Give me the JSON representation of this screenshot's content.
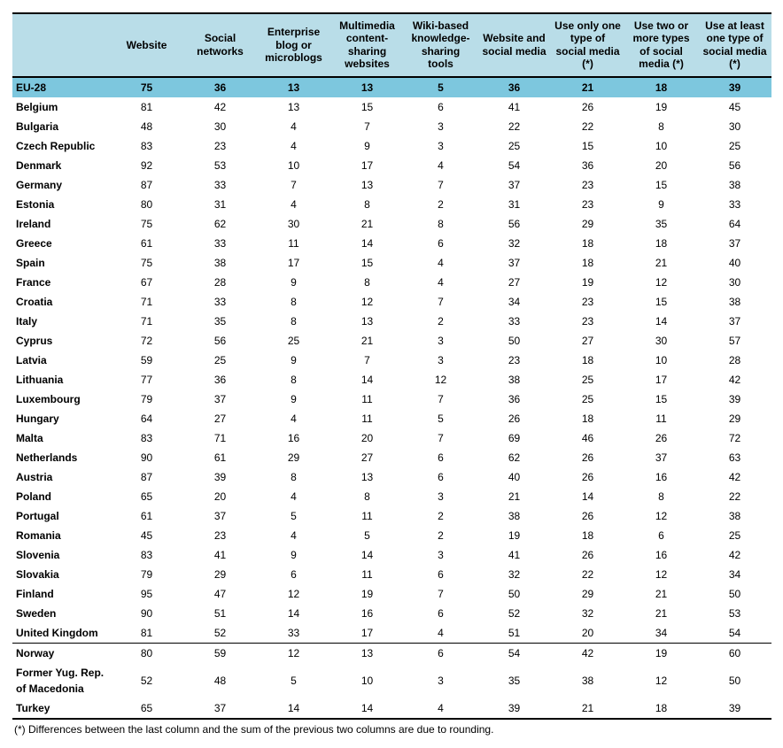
{
  "table": {
    "columns": [
      "",
      "Website",
      "Social networks",
      "Enterprise blog or microblogs",
      "Multimedia content-sharing websites",
      "Wiki-based knowledge-sharing tools",
      "Website and social media",
      "Use only one type of social media (*)",
      "Use two or more types of social media (*)",
      "Use at least one type of social media (*)"
    ],
    "rows": [
      {
        "label": "EU-28",
        "vals": [
          75,
          36,
          13,
          13,
          5,
          36,
          21,
          18,
          39
        ],
        "highlight": true
      },
      {
        "label": "Belgium",
        "vals": [
          81,
          42,
          13,
          15,
          6,
          41,
          26,
          19,
          45
        ]
      },
      {
        "label": "Bulgaria",
        "vals": [
          48,
          30,
          4,
          7,
          3,
          22,
          22,
          8,
          30
        ]
      },
      {
        "label": "Czech Republic",
        "vals": [
          83,
          23,
          4,
          9,
          3,
          25,
          15,
          10,
          25
        ]
      },
      {
        "label": "Denmark",
        "vals": [
          92,
          53,
          10,
          17,
          4,
          54,
          36,
          20,
          56
        ]
      },
      {
        "label": "Germany",
        "vals": [
          87,
          33,
          7,
          13,
          7,
          37,
          23,
          15,
          38
        ]
      },
      {
        "label": "Estonia",
        "vals": [
          80,
          31,
          4,
          8,
          2,
          31,
          23,
          9,
          33
        ]
      },
      {
        "label": "Ireland",
        "vals": [
          75,
          62,
          30,
          21,
          8,
          56,
          29,
          35,
          64
        ]
      },
      {
        "label": "Greece",
        "vals": [
          61,
          33,
          11,
          14,
          6,
          32,
          18,
          18,
          37
        ]
      },
      {
        "label": "Spain",
        "vals": [
          75,
          38,
          17,
          15,
          4,
          37,
          18,
          21,
          40
        ]
      },
      {
        "label": "France",
        "vals": [
          67,
          28,
          9,
          8,
          4,
          27,
          19,
          12,
          30
        ]
      },
      {
        "label": "Croatia",
        "vals": [
          71,
          33,
          8,
          12,
          7,
          34,
          23,
          15,
          38
        ]
      },
      {
        "label": "Italy",
        "vals": [
          71,
          35,
          8,
          13,
          2,
          33,
          23,
          14,
          37
        ]
      },
      {
        "label": "Cyprus",
        "vals": [
          72,
          56,
          25,
          21,
          3,
          50,
          27,
          30,
          57
        ]
      },
      {
        "label": "Latvia",
        "vals": [
          59,
          25,
          9,
          7,
          3,
          23,
          18,
          10,
          28
        ]
      },
      {
        "label": "Lithuania",
        "vals": [
          77,
          36,
          8,
          14,
          12,
          38,
          25,
          17,
          42
        ]
      },
      {
        "label": "Luxembourg",
        "vals": [
          79,
          37,
          9,
          11,
          7,
          36,
          25,
          15,
          39
        ]
      },
      {
        "label": "Hungary",
        "vals": [
          64,
          27,
          4,
          11,
          5,
          26,
          18,
          11,
          29
        ]
      },
      {
        "label": "Malta",
        "vals": [
          83,
          71,
          16,
          20,
          7,
          69,
          46,
          26,
          72
        ]
      },
      {
        "label": "Netherlands",
        "vals": [
          90,
          61,
          29,
          27,
          6,
          62,
          26,
          37,
          63
        ]
      },
      {
        "label": "Austria",
        "vals": [
          87,
          39,
          8,
          13,
          6,
          40,
          26,
          16,
          42
        ]
      },
      {
        "label": "Poland",
        "vals": [
          65,
          20,
          4,
          8,
          3,
          21,
          14,
          8,
          22
        ]
      },
      {
        "label": "Portugal",
        "vals": [
          61,
          37,
          5,
          11,
          2,
          38,
          26,
          12,
          38
        ]
      },
      {
        "label": "Romania",
        "vals": [
          45,
          23,
          4,
          5,
          2,
          19,
          18,
          6,
          25
        ]
      },
      {
        "label": "Slovenia",
        "vals": [
          83,
          41,
          9,
          14,
          3,
          41,
          26,
          16,
          42
        ]
      },
      {
        "label": "Slovakia",
        "vals": [
          79,
          29,
          6,
          11,
          6,
          32,
          22,
          12,
          34
        ]
      },
      {
        "label": "Finland",
        "vals": [
          95,
          47,
          12,
          19,
          7,
          50,
          29,
          21,
          50
        ]
      },
      {
        "label": "Sweden",
        "vals": [
          90,
          51,
          14,
          16,
          6,
          52,
          32,
          21,
          53
        ]
      },
      {
        "label": "United Kingdom",
        "vals": [
          81,
          52,
          33,
          17,
          4,
          51,
          20,
          34,
          54
        ]
      },
      {
        "label": "Norway",
        "vals": [
          80,
          59,
          12,
          13,
          6,
          54,
          42,
          19,
          60
        ],
        "dividerAbove": true
      },
      {
        "label": "Former Yug. Rep. of Macedonia",
        "vals": [
          52,
          48,
          5,
          10,
          3,
          35,
          38,
          12,
          50
        ]
      },
      {
        "label": "Turkey",
        "vals": [
          65,
          37,
          14,
          14,
          4,
          39,
          21,
          18,
          39
        ],
        "last": true
      }
    ],
    "footnote": "(*) Differences between the last column and the sum of the previous two columns are due to rounding.",
    "header_bg": "#b9dde8",
    "highlight_bg": "#7dc7de",
    "font_family": "Arial",
    "font_size_pt": 9,
    "text_color": "#000000"
  }
}
